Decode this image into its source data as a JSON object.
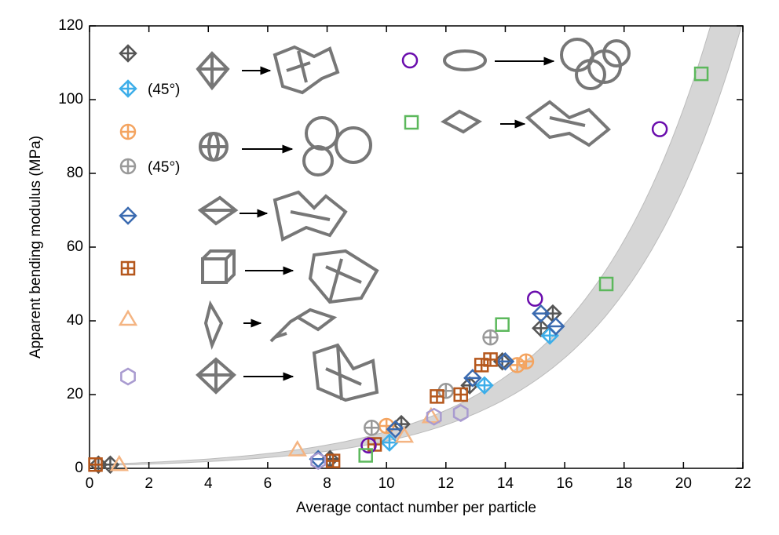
{
  "chart_data": {
    "type": "scatter",
    "x_label": "Average contact number per particle",
    "y_label": "Apparent bending modulus (MPa)",
    "xlim": [
      0,
      22
    ],
    "xticks": [
      0,
      2,
      4,
      6,
      8,
      10,
      12,
      14,
      16,
      18,
      20,
      22
    ],
    "ylim": [
      0,
      120
    ],
    "yticks": [
      0,
      20,
      40,
      60,
      80,
      100,
      120
    ],
    "series": [
      {
        "marker": "diamond-plus",
        "color": "#555555",
        "x": [
          0.3,
          0.7,
          8.1,
          10.5,
          12.8,
          13.9,
          15.2,
          15.6
        ],
        "values": [
          1,
          1,
          2.5,
          12,
          22.5,
          29,
          38,
          42
        ]
      },
      {
        "name": "(45°)",
        "marker": "diamond-plus",
        "color": "#3daee9",
        "x": [
          10.1,
          13.3,
          15.5
        ],
        "values": [
          7,
          22.5,
          36
        ]
      },
      {
        "marker": "circle-plus",
        "color": "#f4a460",
        "x": [
          10,
          14.4,
          14.7
        ],
        "values": [
          11.5,
          28,
          29
        ]
      },
      {
        "name": "(45°)",
        "marker": "circle-plus",
        "color": "#999999",
        "x": [
          9.5,
          12,
          13.5
        ],
        "values": [
          11,
          21,
          35.5
        ]
      },
      {
        "marker": "diamond-line",
        "color": "#3a6ab0",
        "x": [
          7.7,
          10.3,
          12.9,
          14,
          15.2,
          15.7
        ],
        "values": [
          2.5,
          10.6,
          24.5,
          29,
          42,
          38.5
        ]
      },
      {
        "marker": "square-plus",
        "color": "#b5571c",
        "x": [
          0.2,
          8.2,
          9.6,
          11.7,
          12.5,
          13.2,
          13.5
        ],
        "values": [
          1,
          2,
          6.5,
          19.5,
          20,
          28,
          29.5
        ]
      },
      {
        "marker": "triangle",
        "color": "#f4b482",
        "x": [
          1,
          7,
          10.6,
          11.5
        ],
        "values": [
          1,
          5,
          8.7,
          14
        ]
      },
      {
        "marker": "hexagon",
        "color": "#a99bd0",
        "x": [
          7.7,
          11.6,
          12.5
        ],
        "values": [
          2,
          14,
          15
        ]
      },
      {
        "marker": "circle",
        "color": "#6a0dad",
        "x": [
          9.4,
          15,
          19.2
        ],
        "values": [
          6.2,
          46,
          92
        ]
      },
      {
        "marker": "square",
        "color": "#5cb85c",
        "x": [
          9.3,
          13.9,
          17.4,
          20.6
        ],
        "values": [
          3.5,
          39,
          50,
          107
        ]
      }
    ]
  }
}
